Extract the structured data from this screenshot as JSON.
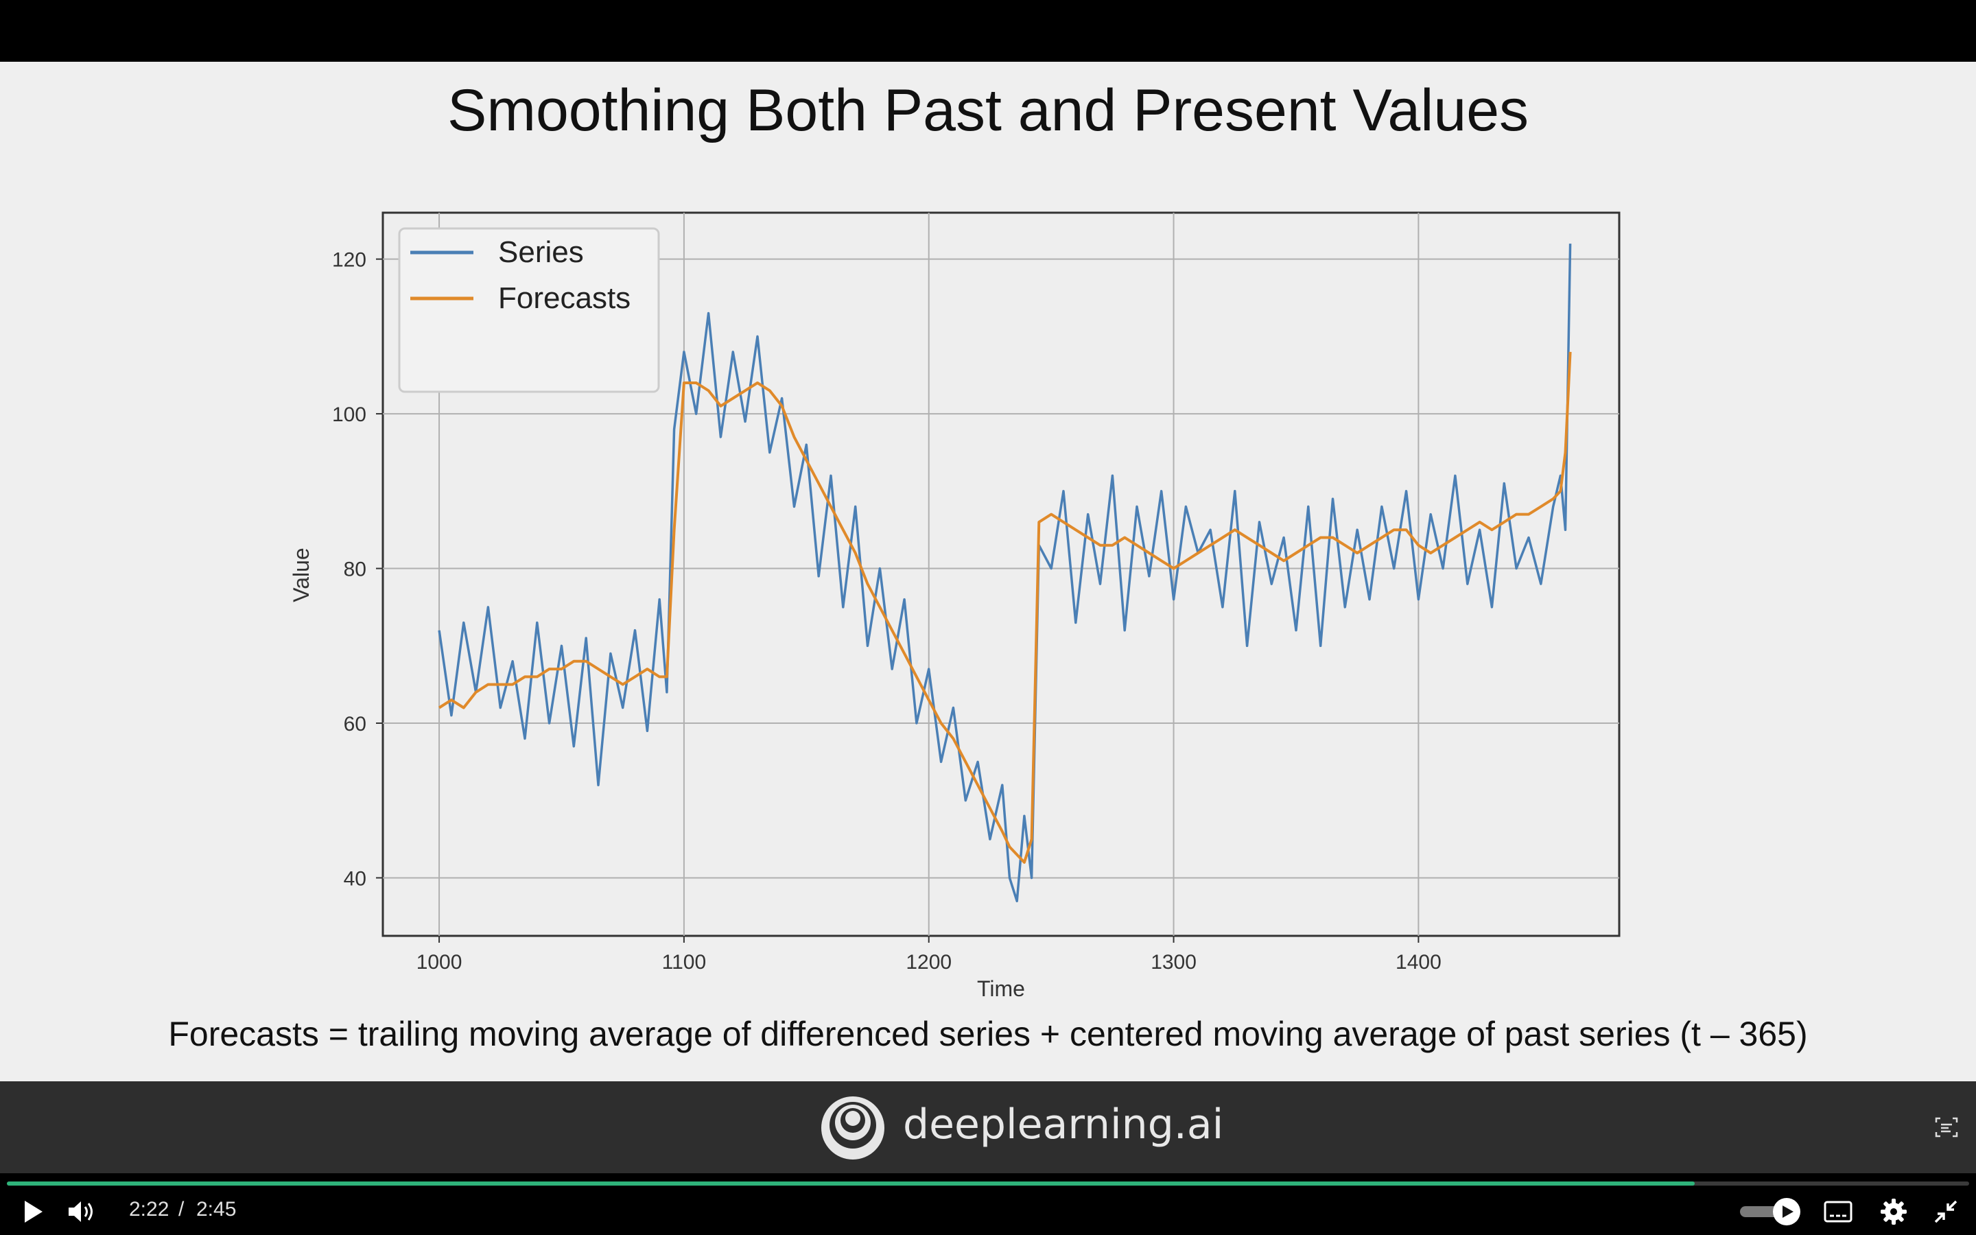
{
  "slide": {
    "title": "Smoothing Both Past and Present Values",
    "caption": "Forecasts = trailing moving average of differenced series + centered moving average of past series (t – 365)"
  },
  "chart_data": {
    "type": "line",
    "xlabel": "Time",
    "ylabel": "Value",
    "xlim": [
      977,
      1482
    ],
    "ylim": [
      32.5,
      126
    ],
    "xticks": [
      1000,
      1100,
      1200,
      1300,
      1400
    ],
    "yticks": [
      40,
      60,
      80,
      100,
      120
    ],
    "grid": true,
    "legend_position": "top-left",
    "colors": {
      "Series": "#4a7fb5",
      "Forecasts": "#e08a2a"
    },
    "series": [
      {
        "name": "Series",
        "x": [
          1000,
          1005,
          1010,
          1015,
          1020,
          1025,
          1030,
          1035,
          1040,
          1045,
          1050,
          1055,
          1060,
          1065,
          1070,
          1075,
          1080,
          1085,
          1090,
          1093,
          1096,
          1100,
          1105,
          1110,
          1115,
          1120,
          1125,
          1130,
          1135,
          1140,
          1145,
          1150,
          1155,
          1160,
          1165,
          1170,
          1175,
          1180,
          1185,
          1190,
          1195,
          1200,
          1205,
          1210,
          1215,
          1220,
          1225,
          1230,
          1233,
          1236,
          1239,
          1242,
          1245,
          1250,
          1255,
          1260,
          1265,
          1270,
          1275,
          1280,
          1285,
          1290,
          1295,
          1300,
          1305,
          1310,
          1315,
          1320,
          1325,
          1330,
          1335,
          1340,
          1345,
          1350,
          1355,
          1360,
          1365,
          1370,
          1375,
          1380,
          1385,
          1390,
          1395,
          1400,
          1405,
          1410,
          1415,
          1420,
          1425,
          1430,
          1435,
          1440,
          1445,
          1450,
          1455,
          1458,
          1460,
          1462
        ],
        "y": [
          72,
          61,
          73,
          64,
          75,
          62,
          68,
          58,
          73,
          60,
          70,
          57,
          71,
          52,
          69,
          62,
          72,
          59,
          76,
          64,
          98,
          108,
          100,
          113,
          97,
          108,
          99,
          110,
          95,
          102,
          88,
          96,
          79,
          92,
          75,
          88,
          70,
          80,
          67,
          76,
          60,
          67,
          55,
          62,
          50,
          55,
          45,
          52,
          40,
          37,
          48,
          40,
          83,
          80,
          90,
          73,
          87,
          78,
          92,
          72,
          88,
          79,
          90,
          76,
          88,
          82,
          85,
          75,
          90,
          70,
          86,
          78,
          84,
          72,
          88,
          70,
          89,
          75,
          85,
          76,
          88,
          80,
          90,
          76,
          87,
          80,
          92,
          78,
          85,
          75,
          91,
          80,
          84,
          78,
          88,
          92,
          85,
          122
        ]
      },
      {
        "name": "Forecasts",
        "x": [
          1000,
          1005,
          1010,
          1015,
          1020,
          1025,
          1030,
          1035,
          1040,
          1045,
          1050,
          1055,
          1060,
          1065,
          1070,
          1075,
          1080,
          1085,
          1090,
          1093,
          1096,
          1100,
          1105,
          1110,
          1115,
          1120,
          1125,
          1130,
          1135,
          1140,
          1145,
          1150,
          1155,
          1160,
          1165,
          1170,
          1175,
          1180,
          1185,
          1190,
          1195,
          1200,
          1205,
          1210,
          1215,
          1220,
          1225,
          1230,
          1233,
          1236,
          1239,
          1242,
          1245,
          1250,
          1255,
          1260,
          1265,
          1270,
          1275,
          1280,
          1285,
          1290,
          1295,
          1300,
          1305,
          1310,
          1315,
          1320,
          1325,
          1330,
          1335,
          1340,
          1345,
          1350,
          1355,
          1360,
          1365,
          1370,
          1375,
          1380,
          1385,
          1390,
          1395,
          1400,
          1405,
          1410,
          1415,
          1420,
          1425,
          1430,
          1435,
          1440,
          1445,
          1450,
          1455,
          1458,
          1460,
          1462
        ],
        "y": [
          62,
          63,
          62,
          64,
          65,
          65,
          65,
          66,
          66,
          67,
          67,
          68,
          68,
          67,
          66,
          65,
          66,
          67,
          66,
          66,
          85,
          104,
          104,
          103,
          101,
          102,
          103,
          104,
          103,
          101,
          97,
          94,
          91,
          88,
          85,
          82,
          78,
          75,
          72,
          69,
          66,
          63,
          60,
          58,
          55,
          52,
          49,
          46,
          44,
          43,
          42,
          45,
          86,
          87,
          86,
          85,
          84,
          83,
          83,
          84,
          83,
          82,
          81,
          80,
          81,
          82,
          83,
          84,
          85,
          84,
          83,
          82,
          81,
          82,
          83,
          84,
          84,
          83,
          82,
          83,
          84,
          85,
          85,
          83,
          82,
          83,
          84,
          85,
          86,
          85,
          86,
          87,
          87,
          88,
          89,
          90,
          95,
          108
        ]
      }
    ]
  },
  "brand": {
    "name": "deeplearning.ai"
  },
  "player": {
    "current_time": "2:22",
    "separator": "/",
    "total_time": "2:45",
    "progress": 0.86,
    "icons": [
      "play-icon",
      "volume-icon",
      "speed-toggle-icon",
      "captions-icon",
      "settings-icon",
      "exit-fullscreen-icon",
      "transcript-icon"
    ]
  }
}
